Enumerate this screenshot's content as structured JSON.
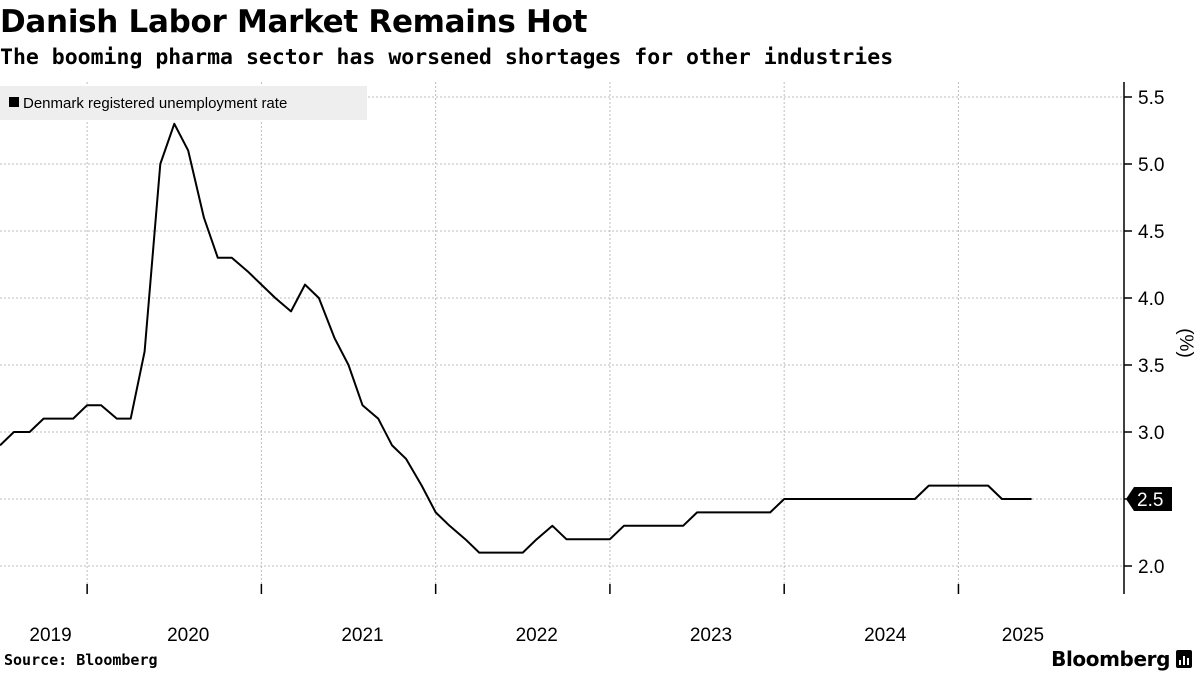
{
  "title": "Danish Labor Market Remains Hot",
  "subtitle": "The booming pharma sector has worsened shortages for other industries",
  "source": "Source: Bloomberg",
  "brand": "Bloomberg",
  "colors": {
    "line": "#000000",
    "grid": "#bdbdbd",
    "legend_bg": "#eeeeee",
    "label_bg": "#000000",
    "label_text": "#ffffff"
  },
  "chart_data": {
    "type": "line",
    "title": "Danish Labor Market Remains Hot",
    "subtitle": "The booming pharma sector has worsened shortages for other industries",
    "xlabel": "",
    "ylabel": "(%)",
    "ylim": [
      1.8,
      5.55
    ],
    "yticks": [
      2.0,
      2.5,
      3.0,
      3.5,
      4.0,
      4.5,
      5.0,
      5.5
    ],
    "ytick_labels": [
      "2.0",
      "2.5",
      "3.0",
      "3.5",
      "4.0",
      "4.5",
      "5.0",
      "5.5"
    ],
    "xlim": [
      2019.0,
      2025.45
    ],
    "year_boundaries": [
      2019.5,
      2020.5,
      2021.5,
      2022.5,
      2023.5,
      2024.5
    ],
    "xtick_labels": [
      {
        "label": "2019",
        "at": 2019.29
      },
      {
        "label": "2020",
        "at": 2020.08
      },
      {
        "label": "2021",
        "at": 2021.08
      },
      {
        "label": "2022",
        "at": 2022.08
      },
      {
        "label": "2023",
        "at": 2023.08
      },
      {
        "label": "2024",
        "at": 2024.08
      },
      {
        "label": "2025",
        "at": 2024.87
      }
    ],
    "grid": true,
    "legend": {
      "position": "top-left",
      "entries": [
        "Denmark registered unemployment rate"
      ]
    },
    "last_value_label": "2.5",
    "series": [
      {
        "name": "Denmark registered unemployment rate",
        "x": [
          2019.0,
          2019.08,
          2019.17,
          2019.25,
          2019.33,
          2019.42,
          2019.5,
          2019.58,
          2019.67,
          2019.75,
          2019.83,
          2019.92,
          2020.0,
          2020.08,
          2020.17,
          2020.25,
          2020.33,
          2020.42,
          2020.5,
          2020.58,
          2020.67,
          2020.75,
          2020.83,
          2020.92,
          2021.0,
          2021.08,
          2021.17,
          2021.25,
          2021.33,
          2021.42,
          2021.5,
          2021.58,
          2021.67,
          2021.75,
          2021.83,
          2021.92,
          2022.0,
          2022.08,
          2022.17,
          2022.25,
          2022.33,
          2022.42,
          2022.5,
          2022.58,
          2022.67,
          2022.75,
          2022.83,
          2022.92,
          2023.0,
          2023.08,
          2023.17,
          2023.25,
          2023.33,
          2023.42,
          2023.5,
          2023.58,
          2023.67,
          2023.75,
          2023.83,
          2023.92,
          2024.0,
          2024.08,
          2024.17,
          2024.25,
          2024.33,
          2024.42,
          2024.5,
          2024.58,
          2024.67,
          2024.75,
          2024.83,
          2024.92
        ],
        "values": [
          2.9,
          3.0,
          3.0,
          3.1,
          3.1,
          3.1,
          3.2,
          3.2,
          3.1,
          3.1,
          3.6,
          5.0,
          5.3,
          5.1,
          4.6,
          4.3,
          4.3,
          4.2,
          4.1,
          4.0,
          3.9,
          4.1,
          4.0,
          3.7,
          3.5,
          3.2,
          3.1,
          2.9,
          2.8,
          2.6,
          2.4,
          2.3,
          2.2,
          2.1,
          2.1,
          2.1,
          2.1,
          2.2,
          2.3,
          2.2,
          2.2,
          2.2,
          2.2,
          2.3,
          2.3,
          2.3,
          2.3,
          2.3,
          2.4,
          2.4,
          2.4,
          2.4,
          2.4,
          2.4,
          2.5,
          2.5,
          2.5,
          2.5,
          2.5,
          2.5,
          2.5,
          2.5,
          2.5,
          2.5,
          2.6,
          2.6,
          2.6,
          2.6,
          2.6,
          2.5,
          2.5,
          2.5
        ]
      }
    ]
  }
}
